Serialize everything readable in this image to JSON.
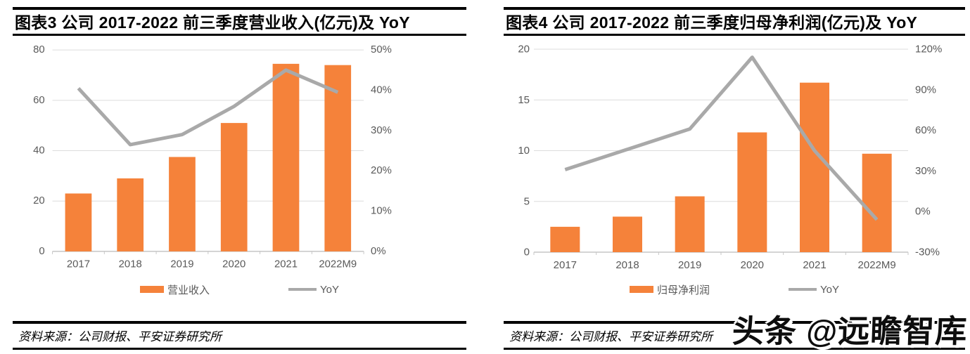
{
  "colors": {
    "bar": "#F5823A",
    "line": "#A9A9A9",
    "axis_text": "#595959",
    "grid": "#DCDCDC",
    "axis_line": "#C6C6C6",
    "rule": "#000000",
    "title_text": "#000000"
  },
  "watermark": {
    "text": "头条 @远瞻智库"
  },
  "chart_data": [
    {
      "type": "bar+line",
      "title": "图表3 公司 2017-2022 前三季度营业收入(亿元)及 YoY",
      "categories": [
        "2017",
        "2018",
        "2019",
        "2020",
        "2021",
        "2022M9"
      ],
      "series": [
        {
          "name": "营业收入",
          "type": "bar",
          "axis": "left",
          "values": [
            23,
            29,
            37.5,
            51,
            74.5,
            74
          ]
        },
        {
          "name": "YoY",
          "type": "line",
          "axis": "right",
          "values": [
            40.5,
            26.5,
            29,
            36,
            45,
            39.5
          ]
        }
      ],
      "left_axis": {
        "range": [
          0,
          80
        ],
        "tick_labels_top_to_bottom": [
          "80",
          "60",
          "40",
          "20",
          "0"
        ]
      },
      "right_axis": {
        "range": [
          0,
          50
        ],
        "tick_labels_top_to_bottom": [
          "50%",
          "40%",
          "30%",
          "20%",
          "10%",
          "0%"
        ],
        "unit": "%"
      },
      "legend_position": "bottom",
      "grid": "horizontal",
      "source": "资料来源：公司财报、平安证券研究所"
    },
    {
      "type": "bar+line",
      "title": "图表4 公司 2017-2022 前三季度归母净利润(亿元)及 YoY",
      "categories": [
        "2017",
        "2018",
        "2019",
        "2020",
        "2021",
        "2022M9"
      ],
      "series": [
        {
          "name": "归母净利润",
          "type": "bar",
          "axis": "left",
          "values": [
            2.5,
            3.5,
            5.5,
            11.8,
            16.7,
            9.7
          ]
        },
        {
          "name": "YoY",
          "type": "line",
          "axis": "right",
          "values": [
            31,
            46,
            61,
            114,
            45,
            -6
          ]
        }
      ],
      "left_axis": {
        "range": [
          0,
          20
        ],
        "tick_labels_top_to_bottom": [
          "20",
          "15",
          "10",
          "5",
          "0"
        ]
      },
      "right_axis": {
        "range": [
          -30,
          120
        ],
        "tick_labels_top_to_bottom": [
          "120%",
          "90%",
          "60%",
          "30%",
          "0%",
          "-30%"
        ],
        "unit": "%"
      },
      "legend_position": "bottom",
      "grid": "horizontal",
      "source": "资料来源：公司财报、平安证券研究所"
    }
  ]
}
